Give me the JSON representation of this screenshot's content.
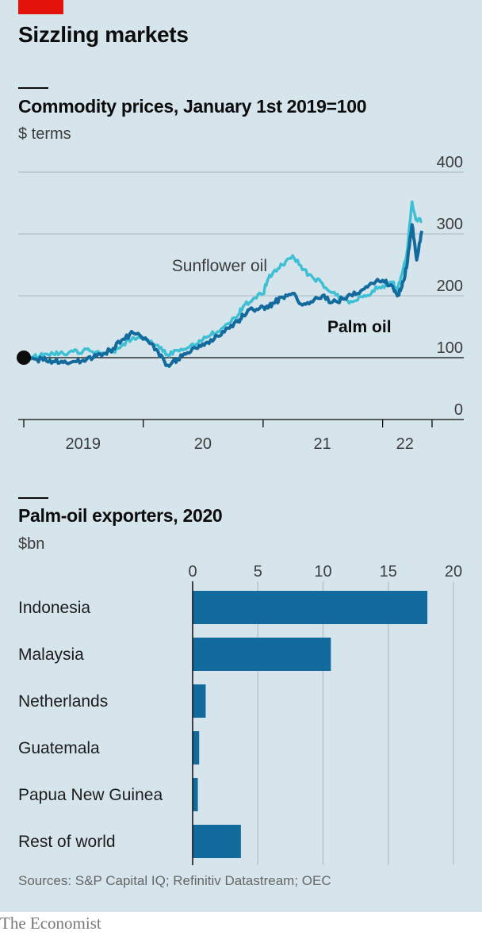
{
  "header": {
    "title": "Sizzling markets"
  },
  "chart1": {
    "title": "Commodity prices, January 1st 2019=100",
    "unit": "$ terms"
  },
  "chart2": {
    "title": "Palm-oil exporters, 2020",
    "unit": "$bn"
  },
  "footer": {
    "source": "Sources: S&P Capital IQ; Refinitiv Datastream; OEC",
    "brand": "The Economist"
  },
  "colors": {
    "background": "#d6e4ec",
    "palm_oil": "#126b9c",
    "sunflower_oil": "#3fbfd4",
    "bars": "#126b9c",
    "brand_red": "#e3120b"
  },
  "chart_data": [
    {
      "type": "line",
      "title": "Commodity prices, January 1st 2019=100",
      "subtitle": "$ terms",
      "ylim": [
        0,
        400
      ],
      "y_ticks": [
        0,
        100,
        200,
        300,
        400
      ],
      "x_tick_labels": [
        "2019",
        "20",
        "21",
        "22"
      ],
      "xlim": [
        "2019-01-01",
        "2022-06-01"
      ],
      "grid": true,
      "series": [
        {
          "name": "Sunflower oil",
          "color": "#3fbfd4",
          "x": [
            "2019-01-01",
            "2019-02-01",
            "2019-03-01",
            "2019-04-01",
            "2019-05-01",
            "2019-06-01",
            "2019-07-01",
            "2019-08-01",
            "2019-09-01",
            "2019-10-01",
            "2019-11-01",
            "2019-12-01",
            "2020-01-15",
            "2020-02-15",
            "2020-03-15",
            "2020-04-15",
            "2020-05-15",
            "2020-06-15",
            "2020-07-15",
            "2020-08-15",
            "2020-09-15",
            "2020-10-15",
            "2020-11-01",
            "2020-12-01",
            "2021-01-01",
            "2021-01-15",
            "2021-02-01",
            "2021-03-01",
            "2021-04-01",
            "2021-05-01",
            "2021-06-01",
            "2021-07-01",
            "2021-08-01",
            "2021-09-01",
            "2021-10-01",
            "2021-11-01",
            "2021-12-01",
            "2022-01-01",
            "2022-02-01",
            "2022-02-15",
            "2022-03-01",
            "2022-03-15",
            "2022-04-01",
            "2022-04-15",
            "2022-05-01"
          ],
          "values": [
            100,
            102,
            103,
            106,
            107,
            110,
            111,
            109,
            108,
            110,
            122,
            133,
            129,
            120,
            105,
            112,
            116,
            122,
            134,
            142,
            155,
            167,
            183,
            195,
            203,
            226,
            238,
            250,
            265,
            242,
            230,
            220,
            205,
            195,
            190,
            198,
            208,
            216,
            220,
            210,
            235,
            265,
            352,
            322,
            320
          ]
        },
        {
          "name": "Palm oil",
          "color": "#126b9c",
          "x": [
            "2019-01-01",
            "2019-02-01",
            "2019-03-01",
            "2019-04-01",
            "2019-05-01",
            "2019-06-01",
            "2019-07-01",
            "2019-08-01",
            "2019-09-01",
            "2019-10-01",
            "2019-11-01",
            "2019-12-01",
            "2020-01-15",
            "2020-02-15",
            "2020-03-15",
            "2020-04-15",
            "2020-05-15",
            "2020-06-15",
            "2020-07-15",
            "2020-08-15",
            "2020-09-15",
            "2020-10-15",
            "2020-11-01",
            "2020-12-01",
            "2021-01-01",
            "2021-01-15",
            "2021-02-01",
            "2021-03-01",
            "2021-04-01",
            "2021-05-01",
            "2021-06-01",
            "2021-07-01",
            "2021-08-01",
            "2021-09-01",
            "2021-10-01",
            "2021-11-01",
            "2021-12-01",
            "2022-01-01",
            "2022-02-01",
            "2022-02-15",
            "2022-03-01",
            "2022-03-15",
            "2022-04-01",
            "2022-04-15",
            "2022-05-01"
          ],
          "values": [
            100,
            98,
            96,
            94,
            92,
            94,
            96,
            100,
            106,
            115,
            130,
            140,
            127,
            110,
            88,
            98,
            108,
            115,
            125,
            135,
            148,
            158,
            168,
            178,
            182,
            180,
            188,
            198,
            204,
            185,
            190,
            200,
            190,
            195,
            200,
            210,
            220,
            225,
            215,
            200,
            215,
            245,
            315,
            258,
            305
          ]
        }
      ],
      "annotations": [
        "Sunflower oil",
        "Palm oil"
      ]
    },
    {
      "type": "bar",
      "orientation": "horizontal",
      "title": "Palm-oil exporters, 2020",
      "subtitle": "$bn",
      "categories": [
        "Indonesia",
        "Malaysia",
        "Netherlands",
        "Guatemala",
        "Papua New Guinea",
        "Rest of world"
      ],
      "values": [
        18.0,
        10.6,
        1.0,
        0.5,
        0.4,
        3.7
      ],
      "xlim": [
        0,
        20
      ],
      "x_ticks": [
        0,
        5,
        10,
        15,
        20
      ],
      "grid": true
    }
  ]
}
